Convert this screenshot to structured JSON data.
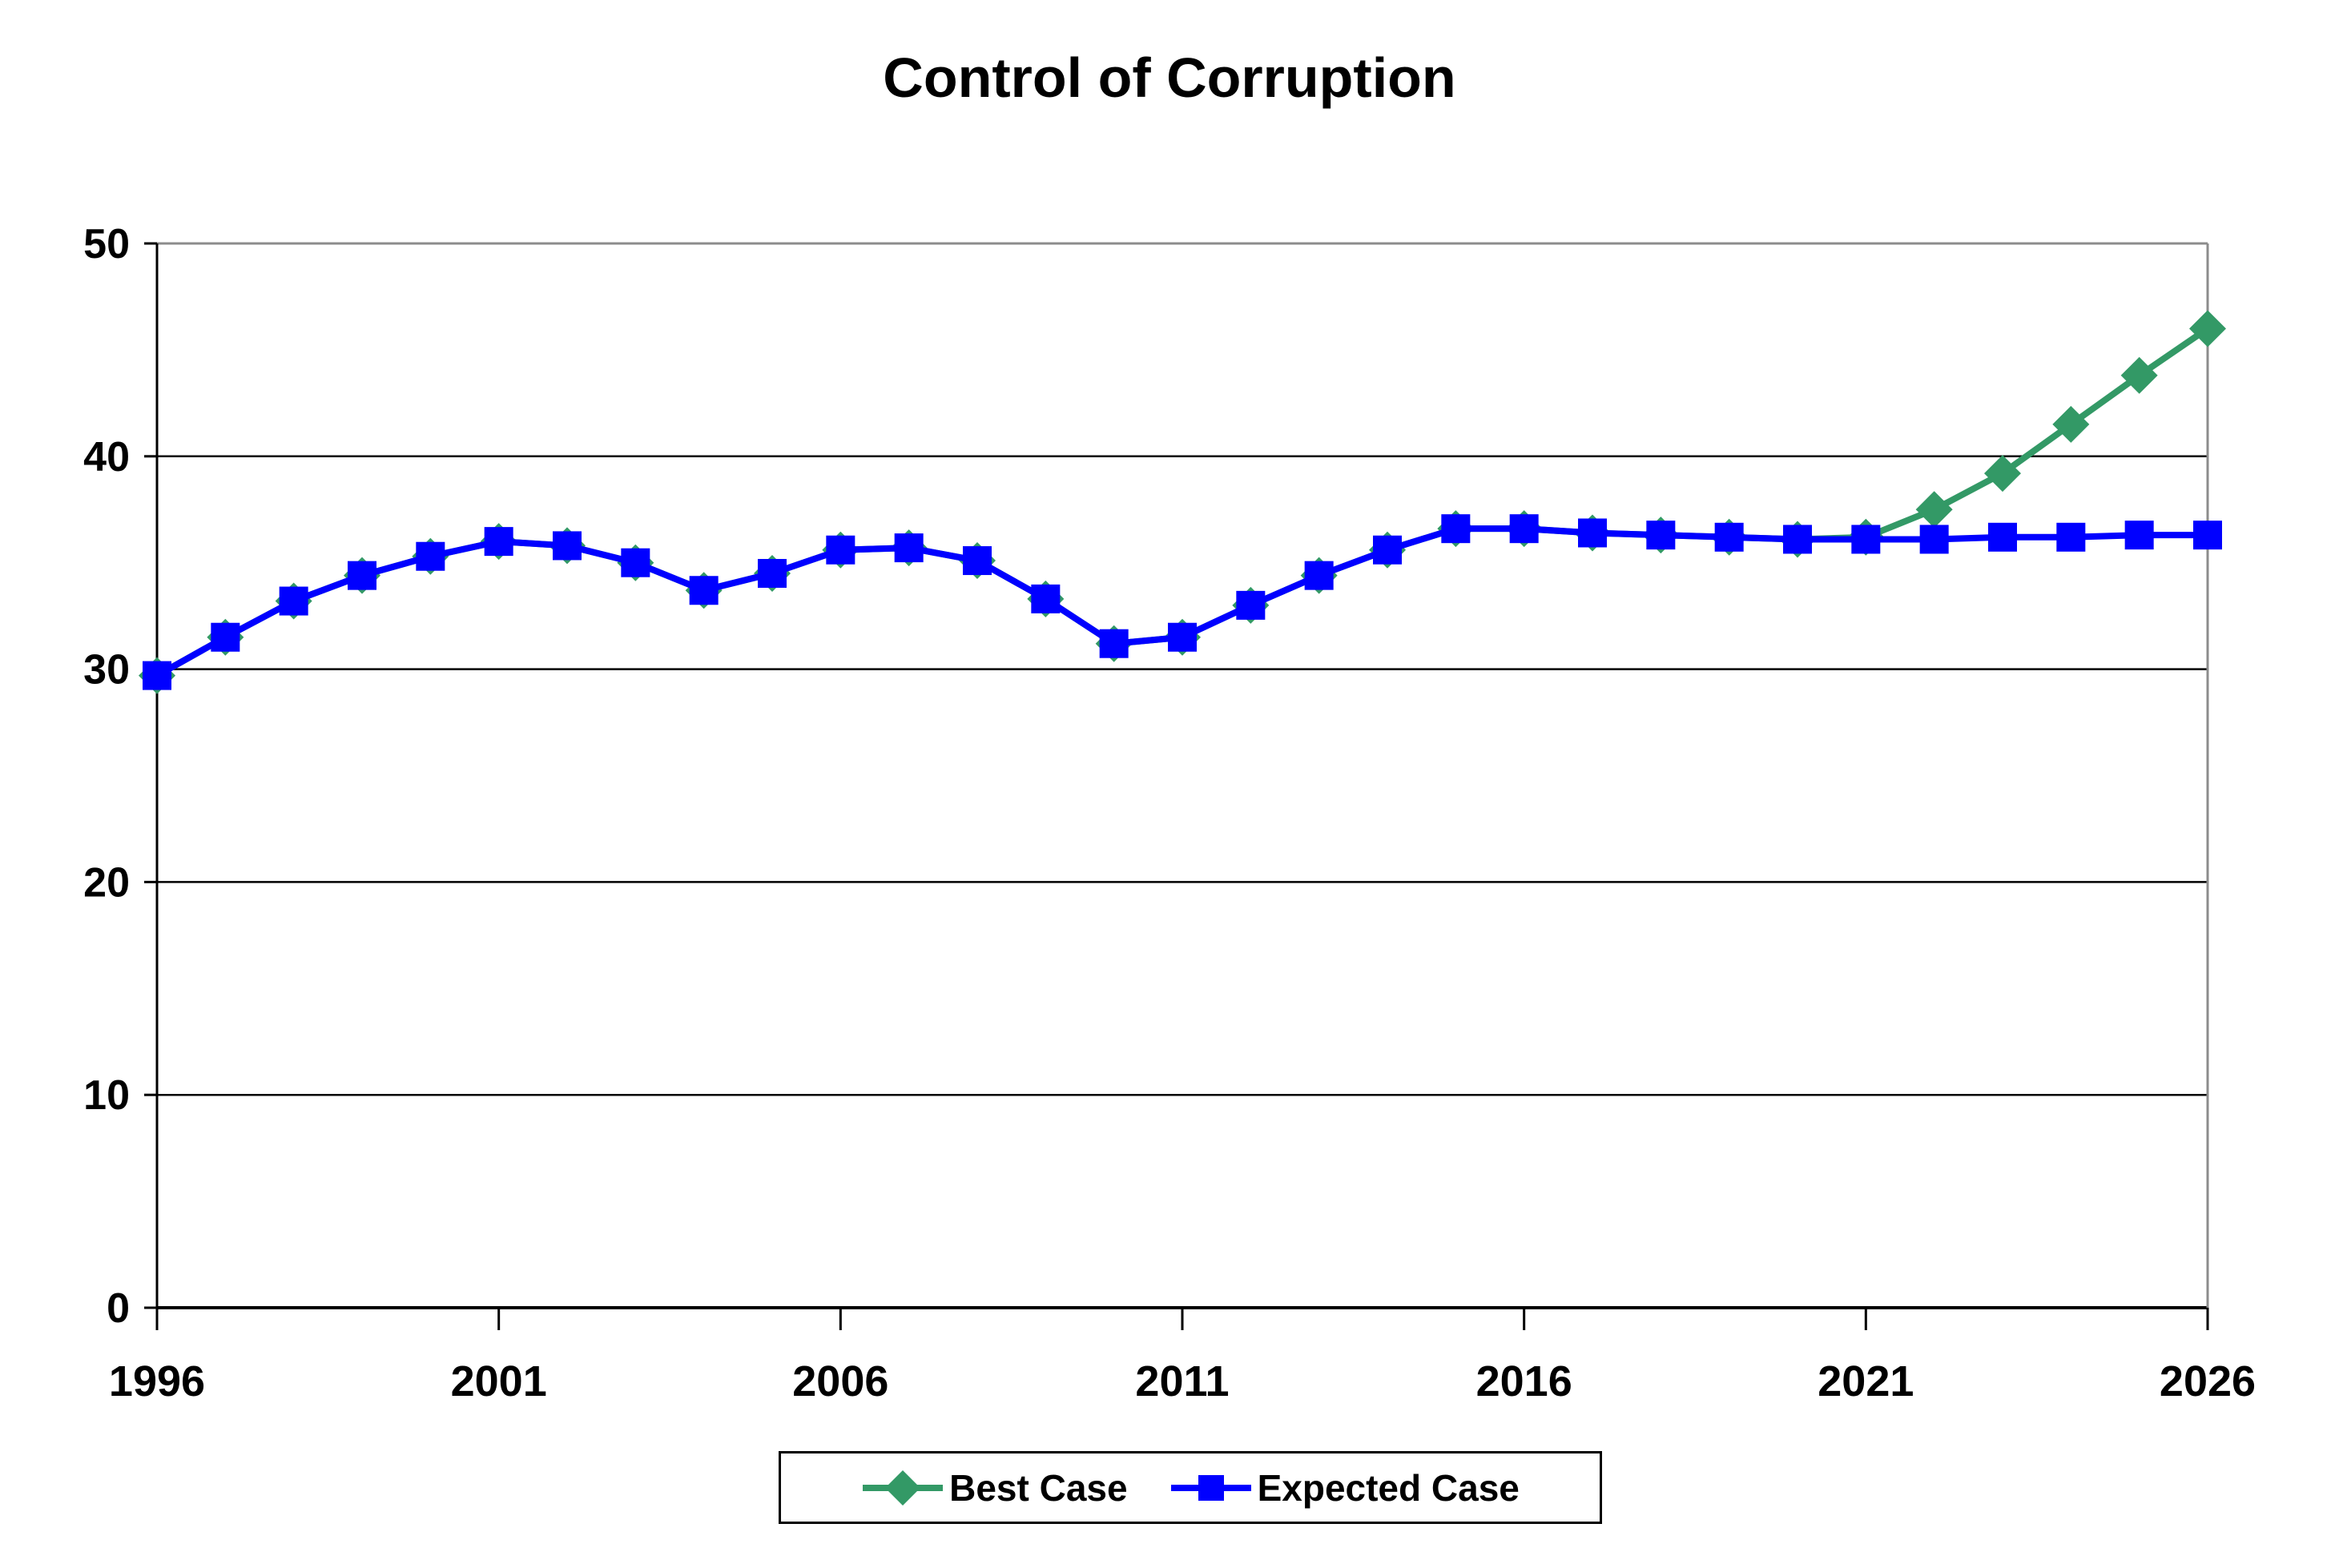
{
  "page": {
    "background": "#ffffff"
  },
  "chart_data": {
    "type": "line",
    "title": "Control of Corruption",
    "x": [
      1996,
      1997,
      1998,
      1999,
      2000,
      2001,
      2002,
      2003,
      2004,
      2005,
      2006,
      2007,
      2008,
      2009,
      2010,
      2011,
      2012,
      2013,
      2014,
      2015,
      2016,
      2017,
      2018,
      2019,
      2020,
      2021,
      2022,
      2023,
      2024,
      2025,
      2026
    ],
    "xticks": [
      1996,
      2001,
      2006,
      2011,
      2016,
      2021,
      2026
    ],
    "yticks": [
      0,
      10,
      20,
      30,
      40,
      50
    ],
    "xlim": [
      1996,
      2026
    ],
    "ylim": [
      0,
      50
    ],
    "grid": true,
    "legend_position": "bottom",
    "axis_color": "#000000",
    "frame_color": "#8C8C8C",
    "series": [
      {
        "name": "Best Case",
        "color": "#339966",
        "marker": "diamond",
        "values": [
          29.7,
          31.5,
          33.2,
          34.4,
          35.3,
          36.0,
          35.8,
          35.0,
          33.7,
          34.5,
          35.6,
          35.7,
          35.1,
          33.3,
          31.2,
          31.5,
          33.0,
          34.4,
          35.6,
          36.6,
          36.6,
          36.4,
          36.3,
          36.2,
          36.1,
          36.2,
          37.5,
          39.2,
          41.5,
          43.8,
          46.0
        ]
      },
      {
        "name": "Expected Case",
        "color": "#0000FF",
        "marker": "square",
        "values": [
          29.7,
          31.5,
          33.2,
          34.4,
          35.3,
          36.0,
          35.8,
          35.0,
          33.7,
          34.5,
          35.6,
          35.7,
          35.1,
          33.3,
          31.2,
          31.5,
          33.0,
          34.4,
          35.6,
          36.6,
          36.6,
          36.4,
          36.3,
          36.2,
          36.1,
          36.1,
          36.1,
          36.2,
          36.2,
          36.3,
          36.3
        ]
      }
    ]
  }
}
